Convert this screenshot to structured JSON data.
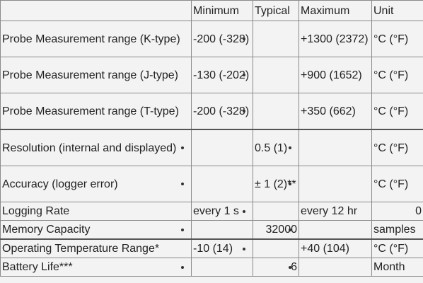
{
  "table": {
    "columns": [
      "Minimum",
      "Typical",
      "Maximum",
      "Unit"
    ],
    "rows": [
      {
        "parameter": "Probe Measurement range (K-type)",
        "minimum": "-200 (-328)",
        "maximum": "+1300 (2372)",
        "unit": "°C (°F)"
      },
      {
        "parameter": "Probe Measurement range (J-type)",
        "minimum": "-130 (-202)",
        "maximum": "+900 (1652)",
        "unit": "°C (°F)"
      },
      {
        "parameter": "Probe Measurement range (T-type)",
        "minimum": "-200 (-328)",
        "maximum": "+350 (662)",
        "unit": "°C (°F)"
      },
      {
        "parameter": "Resolution (internal and displayed)",
        "typical": "0.5 (1)",
        "unit": "°C (°F)"
      },
      {
        "parameter": "Accuracy (logger error)",
        "typical": "± 1 (2)**",
        "unit": "°C (°F)"
      },
      {
        "parameter": "Logging Rate",
        "minimum": "every 1 s",
        "maximum": "every 12 hr",
        "unit": "0"
      },
      {
        "parameter": "Memory Capacity",
        "typical": "32000",
        "unit": "samples"
      },
      {
        "parameter": "Operating Temperature Range*",
        "minimum": "-10 (14)",
        "maximum": "+40 (104)",
        "unit": "°C (°F)"
      },
      {
        "parameter": "Battery Life***",
        "typical": "6",
        "unit": "Month"
      }
    ]
  }
}
